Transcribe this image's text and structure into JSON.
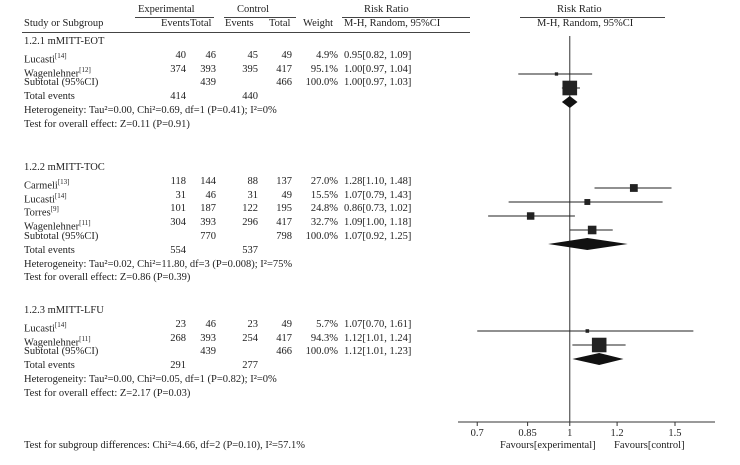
{
  "header": {
    "experimental": "Experimental",
    "control": "Control",
    "risk_ratio": "Risk Ratio",
    "risk_ratio_plot": "Risk Ratio",
    "study": "Study or Subgroup",
    "events_e": "Events",
    "total_e": "Total",
    "events_c": "Events",
    "total_c": "Total",
    "weight": "Weight",
    "method": "M-H, Random, 95%CI",
    "method_plot": "M-H, Random, 95%CI"
  },
  "groups": [
    {
      "title": "1.2.1 mMITT-EOT",
      "rows": [
        {
          "study": "Lucasti",
          "ref": "[14]",
          "ev_e": "40",
          "tot_e": "46",
          "ev_c": "45",
          "tot_c": "49",
          "weight": "4.9%",
          "rr": "0.95[0.82, 1.09]"
        },
        {
          "study": "Wagenlehner",
          "ref": "[12]",
          "ev_e": "374",
          "tot_e": "393",
          "ev_c": "395",
          "tot_c": "417",
          "weight": "95.1%",
          "rr": "1.00[0.97, 1.04]"
        }
      ],
      "subtotal": {
        "label": "Subtotal (95%CI)",
        "tot_e": "439",
        "tot_c": "466",
        "weight": "100.0%",
        "rr": "1.00[0.97, 1.03]"
      },
      "total_events": {
        "label": "Total events",
        "ev_e": "414",
        "ev_c": "440"
      },
      "heterogeneity": "Heterogeneity: Tau²=0.00, Chi²=0.69, df=1 (P=0.41); I²=0%",
      "overall": "Test for overall effect: Z=0.11 (P=0.91)"
    },
    {
      "title": "1.2.2 mMITT-TOC",
      "rows": [
        {
          "study": "Carmeli",
          "ref": "[13]",
          "ev_e": "118",
          "tot_e": "144",
          "ev_c": "88",
          "tot_c": "137",
          "weight": "27.0%",
          "rr": "1.28[1.10, 1.48]"
        },
        {
          "study": "Lucasti",
          "ref": "[14]",
          "ev_e": "31",
          "tot_e": "46",
          "ev_c": "31",
          "tot_c": "49",
          "weight": "15.5%",
          "rr": "1.07[0.79, 1.43]"
        },
        {
          "study": "Torres",
          "ref": "[9]",
          "ev_e": "101",
          "tot_e": "187",
          "ev_c": "122",
          "tot_c": "195",
          "weight": "24.8%",
          "rr": "0.86[0.73, 1.02]"
        },
        {
          "study": "Wagenlehner",
          "ref": "[11]",
          "ev_e": "304",
          "tot_e": "393",
          "ev_c": "296",
          "tot_c": "417",
          "weight": "32.7%",
          "rr": "1.09[1.00, 1.18]"
        }
      ],
      "subtotal": {
        "label": "Subtotal (95%CI)",
        "tot_e": "770",
        "tot_c": "798",
        "weight": "100.0%",
        "rr": "1.07[0.92, 1.25]"
      },
      "total_events": {
        "label": "Total events",
        "ev_e": "554",
        "ev_c": "537"
      },
      "heterogeneity": "Heterogeneity: Tau²=0.02, Chi²=11.80, df=3 (P=0.008); I²=75%",
      "overall": "Test for overall effect: Z=0.86 (P=0.39)"
    },
    {
      "title": "1.2.3 mMITT-LFU",
      "rows": [
        {
          "study": "Lucasti",
          "ref": "[14]",
          "ev_e": "23",
          "tot_e": "46",
          "ev_c": "23",
          "tot_c": "49",
          "weight": "5.7%",
          "rr": "1.07[0.70, 1.61]"
        },
        {
          "study": "Wagenlehner",
          "ref": "[11]",
          "ev_e": "268",
          "tot_e": "393",
          "ev_c": "254",
          "tot_c": "417",
          "weight": "94.3%",
          "rr": "1.12[1.01, 1.24]"
        }
      ],
      "subtotal": {
        "label": "Subtotal (95%CI)",
        "tot_e": "439",
        "tot_c": "466",
        "weight": "100.0%",
        "rr": "1.12[1.01, 1.23]"
      },
      "total_events": {
        "label": "Total events",
        "ev_e": "291",
        "ev_c": "277"
      },
      "heterogeneity": "Heterogeneity: Tau²=0.00, Chi²=0.05, df=1 (P=0.82); I²=0%",
      "overall": "Test for overall effect: Z=2.17 (P=0.03)"
    }
  ],
  "subgroup_test": "Test for subgroup differences: Chi²=4.66, df=2 (P=0.10), I²=57.1%",
  "chart_data": {
    "type": "forest",
    "title": "Risk Ratio",
    "subtitle": "M-H, Random, 95%CI",
    "xscale": "log",
    "xlim": [
      0.65,
      1.75
    ],
    "ticks": [
      0.7,
      0.85,
      1,
      1.2,
      1.5
    ],
    "tick_labels": [
      "0.7",
      "0.85",
      "1",
      "1.2",
      "1.5"
    ],
    "reference_line": 1,
    "favours_left": "Favours[experimental]",
    "favours_right": "Favours[control]",
    "studies": [
      {
        "group": "1.2.1 mMITT-EOT",
        "name": "Lucasti",
        "rr": 0.95,
        "lo": 0.82,
        "hi": 1.09,
        "weight": 4.9
      },
      {
        "group": "1.2.1 mMITT-EOT",
        "name": "Wagenlehner",
        "rr": 1.0,
        "lo": 0.97,
        "hi": 1.04,
        "weight": 95.1
      },
      {
        "group": "1.2.2 mMITT-TOC",
        "name": "Carmeli",
        "rr": 1.28,
        "lo": 1.1,
        "hi": 1.48,
        "weight": 27.0
      },
      {
        "group": "1.2.2 mMITT-TOC",
        "name": "Lucasti",
        "rr": 1.07,
        "lo": 0.79,
        "hi": 1.43,
        "weight": 15.5
      },
      {
        "group": "1.2.2 mMITT-TOC",
        "name": "Torres",
        "rr": 0.86,
        "lo": 0.73,
        "hi": 1.02,
        "weight": 24.8
      },
      {
        "group": "1.2.2 mMITT-TOC",
        "name": "Wagenlehner",
        "rr": 1.09,
        "lo": 1.0,
        "hi": 1.18,
        "weight": 32.7
      },
      {
        "group": "1.2.3 mMITT-LFU",
        "name": "Lucasti",
        "rr": 1.07,
        "lo": 0.7,
        "hi": 1.61,
        "weight": 5.7
      },
      {
        "group": "1.2.3 mMITT-LFU",
        "name": "Wagenlehner",
        "rr": 1.12,
        "lo": 1.01,
        "hi": 1.24,
        "weight": 94.3
      }
    ],
    "subtotals": [
      {
        "group": "1.2.1 mMITT-EOT",
        "rr": 1.0,
        "lo": 0.97,
        "hi": 1.03
      },
      {
        "group": "1.2.2 mMITT-TOC",
        "rr": 1.07,
        "lo": 0.92,
        "hi": 1.25
      },
      {
        "group": "1.2.3 mMITT-LFU",
        "rr": 1.12,
        "lo": 1.01,
        "hi": 1.23
      }
    ]
  }
}
